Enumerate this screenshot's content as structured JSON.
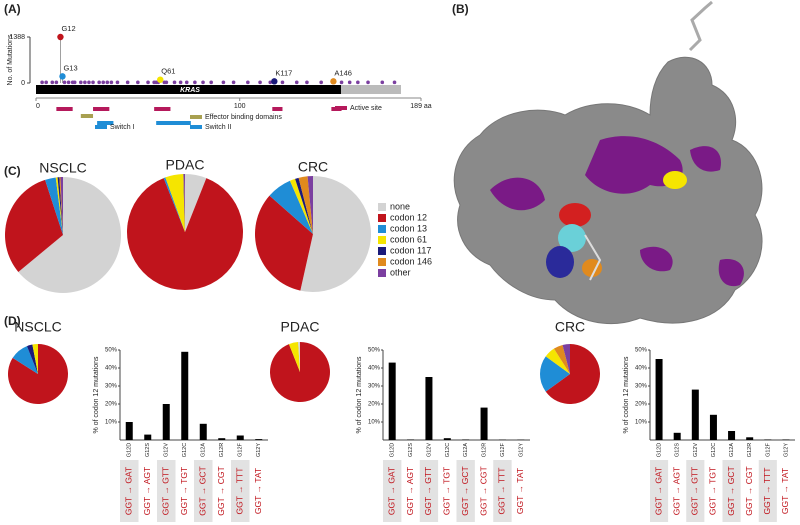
{
  "panel_labels": [
    "(A)",
    "(B)",
    "(C)",
    "(D)"
  ],
  "chart_data": [
    {
      "type": "lollipop",
      "y_label": "No. of Mutations",
      "protein": "KRAS",
      "xlim": [
        0,
        189
      ],
      "xticks": [
        0,
        100,
        {
          "value": 189,
          "label": "189 aa"
        }
      ],
      "ylim": [
        0,
        1388
      ],
      "yticks": [
        0,
        1388
      ],
      "x": [
        12,
        13,
        61,
        117,
        146
      ],
      "values": [
        1388,
        200,
        100,
        50,
        50
      ],
      "labels": [
        "G12",
        "G13",
        "Q61",
        "K117",
        "A146"
      ],
      "colors": [
        "#c0141c",
        "#1f8dd6",
        "#f5e500",
        "#1a1a7a",
        "#e08a1e"
      ],
      "minor": {
        "color": "#7b3fa0",
        "x": [
          3,
          5,
          8,
          10,
          14,
          16,
          18,
          19,
          22,
          24,
          26,
          28,
          31,
          33,
          35,
          37,
          40,
          45,
          50,
          55,
          58,
          59,
          60,
          63,
          64,
          68,
          71,
          74,
          78,
          82,
          86,
          92,
          97,
          104,
          110,
          115,
          121,
          128,
          133,
          140,
          150,
          154,
          158,
          163,
          170,
          176
        ],
        "values": [
          20,
          20,
          20,
          20,
          20,
          20,
          20,
          20,
          20,
          20,
          20,
          20,
          20,
          20,
          20,
          20,
          20,
          20,
          20,
          20,
          20,
          20,
          20,
          20,
          20,
          20,
          20,
          20,
          20,
          20,
          20,
          20,
          20,
          20,
          20,
          20,
          20,
          20,
          20,
          20,
          20,
          20,
          20,
          20,
          20,
          20
        ]
      },
      "domains": [
        {
          "name": "Active site",
          "color": "#b5195b",
          "ranges": [
            [
              10,
              18
            ],
            [
              28,
              36
            ],
            [
              58,
              66
            ],
            [
              116,
              121
            ],
            [
              145,
              150
            ]
          ]
        },
        {
          "name": "Effector binding domains",
          "color": "#a8a050",
          "ranges": [
            [
              22,
              28
            ]
          ]
        },
        {
          "name": "Switch I",
          "color": "#1f8dd6",
          "ranges": [
            [
              30,
              38
            ]
          ]
        },
        {
          "name": "Switch II",
          "color": "#1f8dd6",
          "ranges": [
            [
              59,
              76
            ]
          ]
        }
      ]
    },
    {
      "type": "pie",
      "categories": [
        "none",
        "codon 12",
        "codon 13",
        "codon 61",
        "codon 117",
        "codon 146",
        "other"
      ],
      "colors": [
        "#d3d3d3",
        "#c0141c",
        "#1f8dd6",
        "#f5e500",
        "#1a1a7a",
        "#e08a1e",
        "#7b3fa0"
      ],
      "pies": [
        {
          "title": "NSCLC",
          "values": [
            64,
            31,
            3,
            0.5,
            0.5,
            0.3,
            0.7
          ]
        },
        {
          "title": "PDAC",
          "values": [
            6,
            88,
            0.5,
            5,
            0.1,
            0.1,
            0.3
          ]
        },
        {
          "title": "CRC",
          "values": [
            53.5,
            33,
            7,
            1.5,
            1,
            2.5,
            1.5
          ]
        }
      ]
    },
    {
      "type": "bar",
      "title": "NSCLC",
      "pie": {
        "values": [
          84,
          10,
          3,
          3
        ],
        "colors": [
          "#c0141c",
          "#1f8dd6",
          "#1a1a7a",
          "#f5e500"
        ]
      },
      "y_label": "% of codon 12 mutations",
      "categories": [
        "G12D",
        "G12S",
        "G12V",
        "G12C",
        "G12A",
        "G12R",
        "G12F",
        "G12Y"
      ],
      "codons": [
        "GGT → GAT",
        "GGT → AGT",
        "GGT → GTT",
        "GGT → TGT",
        "GGT → GCT",
        "GGT → CGT",
        "GGT → TTT",
        "GGT → TAT"
      ],
      "values": [
        10,
        3,
        20,
        49,
        9,
        1,
        2.5,
        0.5
      ],
      "color": "#000000",
      "ylim": [
        0,
        50
      ],
      "yticks": [
        {
          "value": 10,
          "label": "10%"
        },
        {
          "value": 20,
          "label": "20%"
        },
        {
          "value": 30,
          "label": "30%"
        },
        {
          "value": 40,
          "label": "40%"
        },
        {
          "value": 50,
          "label": "50%"
        }
      ]
    },
    {
      "type": "bar",
      "title": "PDAC",
      "pie": {
        "values": [
          94,
          5,
          1
        ],
        "colors": [
          "#c0141c",
          "#f5e500",
          "#d3d3d3"
        ]
      },
      "y_label": "% of codon 12 mutations",
      "categories": [
        "G12D",
        "G12S",
        "G12V",
        "G12C",
        "G12A",
        "G12R",
        "G12F",
        "G12Y"
      ],
      "codons": [
        "GGT → GAT",
        "GGT → AGT",
        "GGT → GTT",
        "GGT → TGT",
        "GGT → GCT",
        "GGT → CGT",
        "GGT → TTT",
        "GGT → TAT"
      ],
      "values": [
        43,
        0.3,
        35,
        1,
        0.3,
        18,
        0.2,
        0.2
      ],
      "color": "#000000",
      "ylim": [
        0,
        50
      ],
      "yticks": [
        {
          "value": 10,
          "label": "10%"
        },
        {
          "value": 20,
          "label": "20%"
        },
        {
          "value": 30,
          "label": "30%"
        },
        {
          "value": 40,
          "label": "40%"
        },
        {
          "value": 50,
          "label": "50%"
        }
      ]
    },
    {
      "type": "bar",
      "title": "CRC",
      "pie": {
        "values": [
          65,
          20,
          6,
          5,
          4
        ],
        "colors": [
          "#c0141c",
          "#1f8dd6",
          "#f5e500",
          "#e08a1e",
          "#7b3fa0"
        ]
      },
      "y_label": "% of codon 12 mutations",
      "categories": [
        "G12D",
        "G12S",
        "G12V",
        "G12C",
        "G12A",
        "G12R",
        "G12F",
        "G12Y"
      ],
      "codons": [
        "GGT → GAT",
        "GGT → AGT",
        "GGT → GTT",
        "GGT → TGT",
        "GGT → GCT",
        "GGT → CGT",
        "GGT → TTT",
        "GGT → TAT"
      ],
      "values": [
        45,
        4,
        28,
        14,
        5,
        1.5,
        0.3,
        0.3
      ],
      "color": "#000000",
      "ylim": [
        0,
        50
      ],
      "yticks": [
        {
          "value": 10,
          "label": "10%"
        },
        {
          "value": 20,
          "label": "20%"
        },
        {
          "value": 30,
          "label": "30%"
        },
        {
          "value": 40,
          "label": "40%"
        },
        {
          "value": 50,
          "label": "50%"
        }
      ]
    }
  ]
}
